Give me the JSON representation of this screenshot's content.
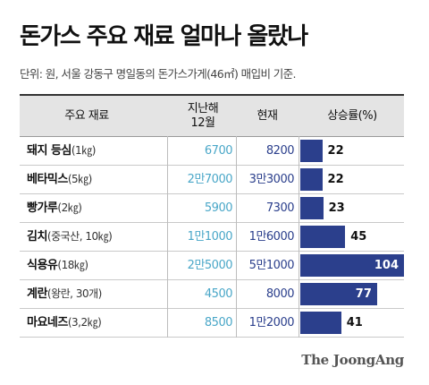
{
  "title": "돈가스 주요 재료 얼마나 올랐나",
  "subtitle": "단위: 원, 서울 강동구 명일동의 돈가스가게(46㎡) 매입비 기준.",
  "source": "The JoongAng",
  "colors": {
    "bar": "#2b3f8c",
    "prev": "#4aa7c8",
    "curr": "#2b3f8c",
    "header_bg": "#e4e4e4"
  },
  "chart_data": {
    "type": "table",
    "columns": [
      "주요 재료",
      "지난해\n12월",
      "현재",
      "상승률(%)"
    ],
    "rows": [
      {
        "name": "돼지 등심",
        "unit": "(1㎏)",
        "prev": "6700",
        "curr": "8200",
        "rate": 22
      },
      {
        "name": "베타믹스",
        "unit": "(5㎏)",
        "prev": "2만7000",
        "curr": "3만3000",
        "rate": 22
      },
      {
        "name": "빵가루",
        "unit": "(2㎏)",
        "prev": "5900",
        "curr": "7300",
        "rate": 23
      },
      {
        "name": "김치",
        "unit": "(중국산, 10㎏)",
        "prev": "1만1000",
        "curr": "1만6000",
        "rate": 45
      },
      {
        "name": "식용유",
        "unit": "(18㎏)",
        "prev": "2만5000",
        "curr": "5만1000",
        "rate": 104
      },
      {
        "name": "계란",
        "unit": "(왕란, 30개)",
        "prev": "4500",
        "curr": "8000",
        "rate": 77
      },
      {
        "name": "마요네즈",
        "unit": "(3,2㎏)",
        "prev": "8500",
        "curr": "1만2000",
        "rate": 41
      }
    ],
    "rate_max": 104
  }
}
